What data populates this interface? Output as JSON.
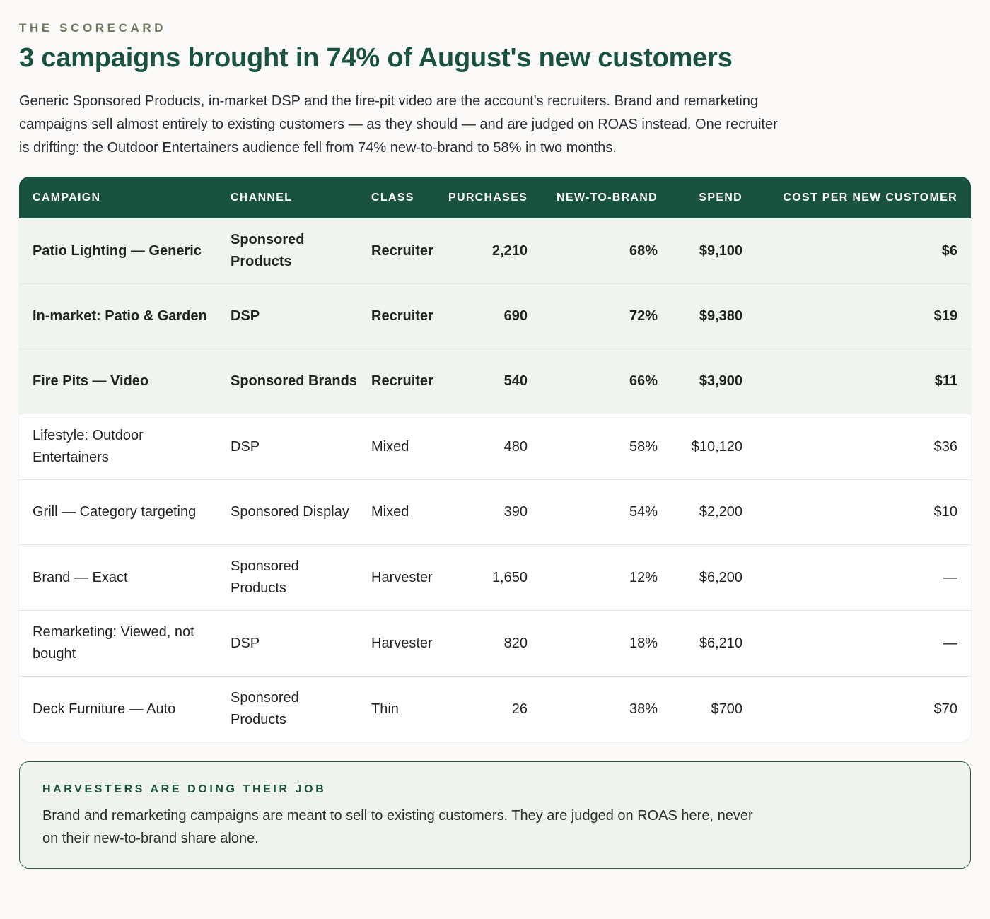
{
  "header": {
    "eyebrow": "THE SCORECARD",
    "title": "3 campaigns brought in 74% of August's new customers",
    "intro": "Generic Sponsored Products, in-market DSP and the fire-pit video are the account's recruiters. Brand and remarketing campaigns sell almost entirely to existing customers — as they should — and are judged on ROAS instead. One recruiter is drifting: the Outdoor Entertainers audience fell from 74% new-to-brand to 58% in two months."
  },
  "table": {
    "columns": [
      "CAMPAIGN",
      "CHANNEL",
      "CLASS",
      "PURCHASES",
      "NEW-TO-BRAND",
      "SPEND",
      "COST PER NEW CUSTOMER"
    ],
    "rows": [
      {
        "campaign": "Patio Lighting — Generic",
        "channel": "Sponsored Products",
        "class": "Recruiter",
        "purchases": "2,210",
        "ntb": "68%",
        "spend": "$9,100",
        "cpnc": "$6",
        "highlight": true
      },
      {
        "campaign": "In-market: Patio & Garden",
        "channel": "DSP",
        "class": "Recruiter",
        "purchases": "690",
        "ntb": "72%",
        "spend": "$9,380",
        "cpnc": "$19",
        "highlight": true
      },
      {
        "campaign": "Fire Pits — Video",
        "channel": "Sponsored Brands",
        "class": "Recruiter",
        "purchases": "540",
        "ntb": "66%",
        "spend": "$3,900",
        "cpnc": "$11",
        "highlight": true
      },
      {
        "campaign": "Lifestyle: Outdoor Entertainers",
        "channel": "DSP",
        "class": "Mixed",
        "purchases": "480",
        "ntb": "58%",
        "spend": "$10,120",
        "cpnc": "$36",
        "highlight": false
      },
      {
        "campaign": "Grill — Category targeting",
        "channel": "Sponsored Display",
        "class": "Mixed",
        "purchases": "390",
        "ntb": "54%",
        "spend": "$2,200",
        "cpnc": "$10",
        "highlight": false
      },
      {
        "campaign": "Brand — Exact",
        "channel": "Sponsored Products",
        "class": "Harvester",
        "purchases": "1,650",
        "ntb": "12%",
        "spend": "$6,200",
        "cpnc": "—",
        "highlight": false
      },
      {
        "campaign": "Remarketing: Viewed, not bought",
        "channel": "DSP",
        "class": "Harvester",
        "purchases": "820",
        "ntb": "18%",
        "spend": "$6,210",
        "cpnc": "—",
        "highlight": false
      },
      {
        "campaign": "Deck Furniture — Auto",
        "channel": "Sponsored Products",
        "class": "Thin",
        "purchases": "26",
        "ntb": "38%",
        "spend": "$700",
        "cpnc": "$70",
        "highlight": false
      }
    ]
  },
  "note": {
    "title": "HARVESTERS ARE DOING THEIR JOB",
    "body": "Brand and remarketing campaigns are meant to sell to existing customers. They are judged on ROAS here, never on their new-to-brand share alone."
  },
  "colors": {
    "accent": "#1a5240",
    "highlight_row": "#eff4ef",
    "eyebrow": "#6b7a5e"
  }
}
